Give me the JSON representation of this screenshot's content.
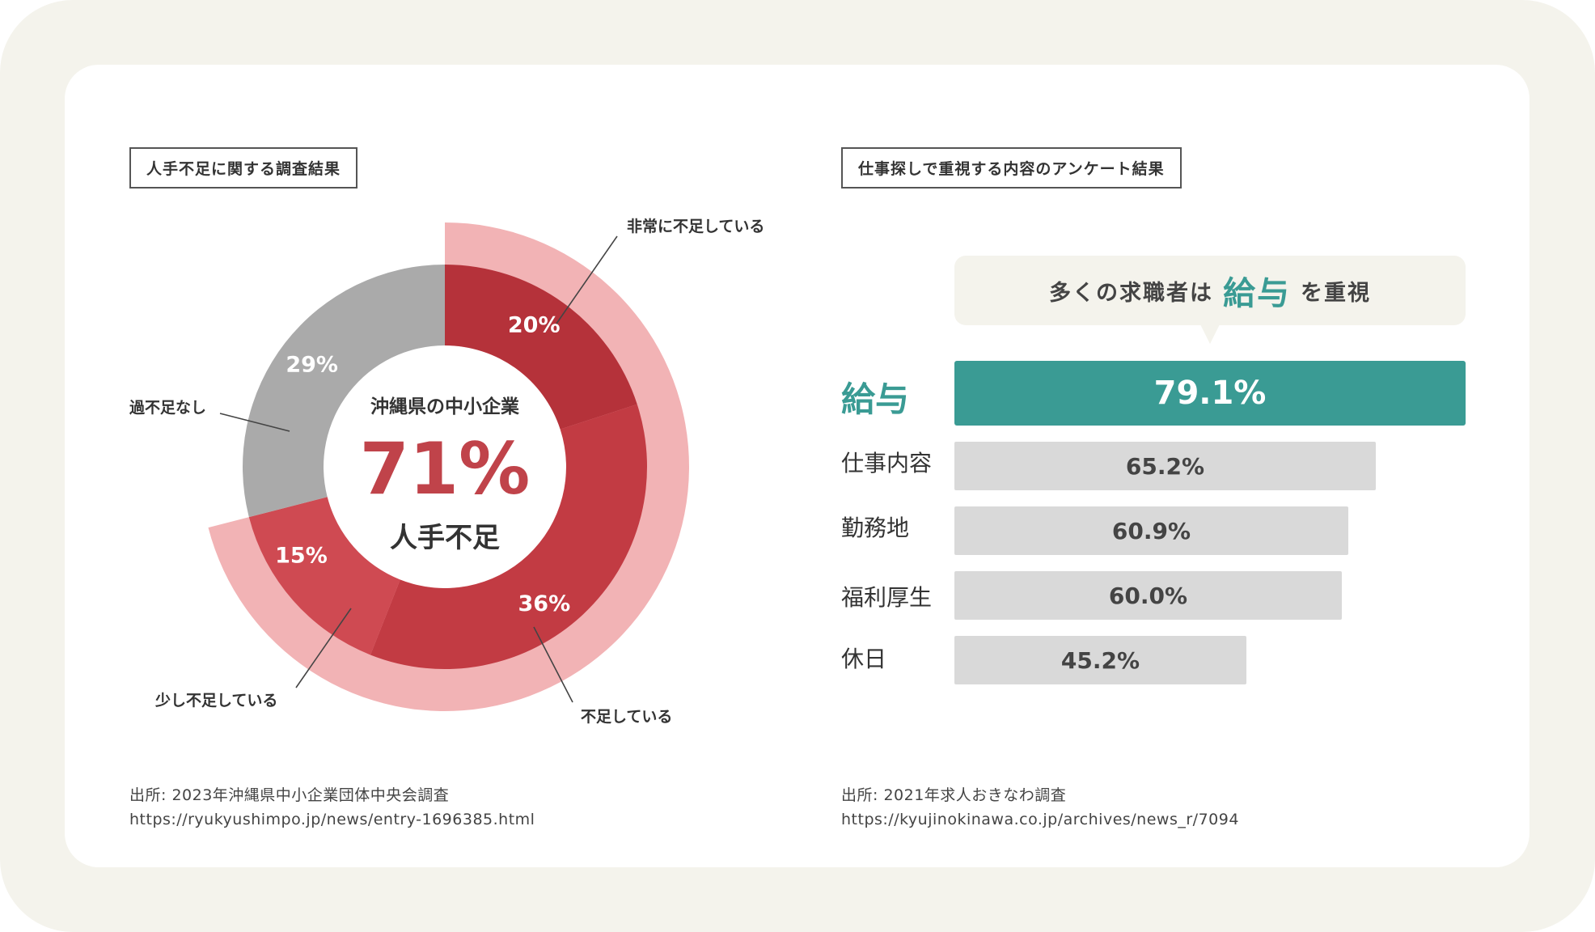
{
  "left_panel": {
    "title": "人手不足に関する調査結果",
    "center_line1": "沖縄県の中小企業",
    "center_value": "71%",
    "center_line2": "人手不足",
    "source_line1": "出所: 2023年沖縄県中小企業団体中央会調査",
    "source_line2": "https://ryukyushimpo.jp/news/entry-1696385.html"
  },
  "right_panel": {
    "title": "仕事探しで重視する内容のアンケート結果",
    "callout_prefix": "多くの求職者は",
    "callout_highlight": "給与",
    "callout_suffix": "を重視",
    "source_line1": "出所: 2021年求人おきなわ調査",
    "source_line2": "https://kyujinokinawa.co.jp/archives/news_r/7094"
  },
  "colors": {
    "severe": "#b5323a",
    "shortage": "#c23b43",
    "slight": "#cf4a52",
    "none": "#aaaaaa",
    "outer_ring": "#f2b3b5",
    "accent_teal": "#3a9b94",
    "bar_grey": "#d9d9d9"
  },
  "chart_data": [
    {
      "type": "pie",
      "categories": [
        "非常に不足している",
        "不足している",
        "少し不足している",
        "過不足なし"
      ],
      "values": [
        20,
        36,
        15,
        29
      ],
      "value_labels": [
        "20%",
        "36%",
        "15%",
        "29%"
      ],
      "highlight_total": "71%"
    },
    {
      "type": "bar",
      "orientation": "horizontal",
      "categories": [
        "給与",
        "仕事内容",
        "勤務地",
        "福利厚生",
        "休日"
      ],
      "values": [
        79.1,
        65.2,
        60.9,
        60.0,
        45.2
      ],
      "value_labels": [
        "79.1%",
        "65.2%",
        "60.9%",
        "60.0%",
        "45.2%"
      ]
    }
  ]
}
